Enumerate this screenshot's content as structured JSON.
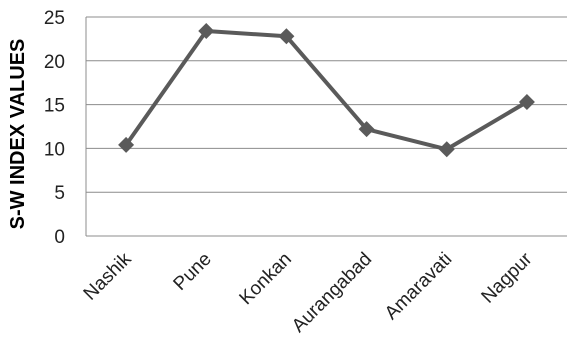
{
  "chart_data": {
    "type": "line",
    "title": "",
    "xlabel": "",
    "ylabel": "S-W INDEX VALUES",
    "categories": [
      "Nashik",
      "Pune",
      "Konkan",
      "Aurangabad",
      "Amaravati",
      "Nagpur"
    ],
    "series": [
      {
        "values": [
          10.4,
          23.4,
          22.8,
          12.2,
          9.9,
          15.3
        ]
      }
    ],
    "ylim": [
      0,
      25
    ],
    "yticks": [
      0,
      5,
      10,
      15,
      20,
      25
    ],
    "grid": true,
    "legend": "none",
    "marker": "diamond",
    "colors": {
      "line": "#5a5a5a",
      "marker": "#5a5a5a",
      "grid": "#8c8c8c",
      "axis": "#8c8c8c",
      "text": "#222222"
    }
  }
}
